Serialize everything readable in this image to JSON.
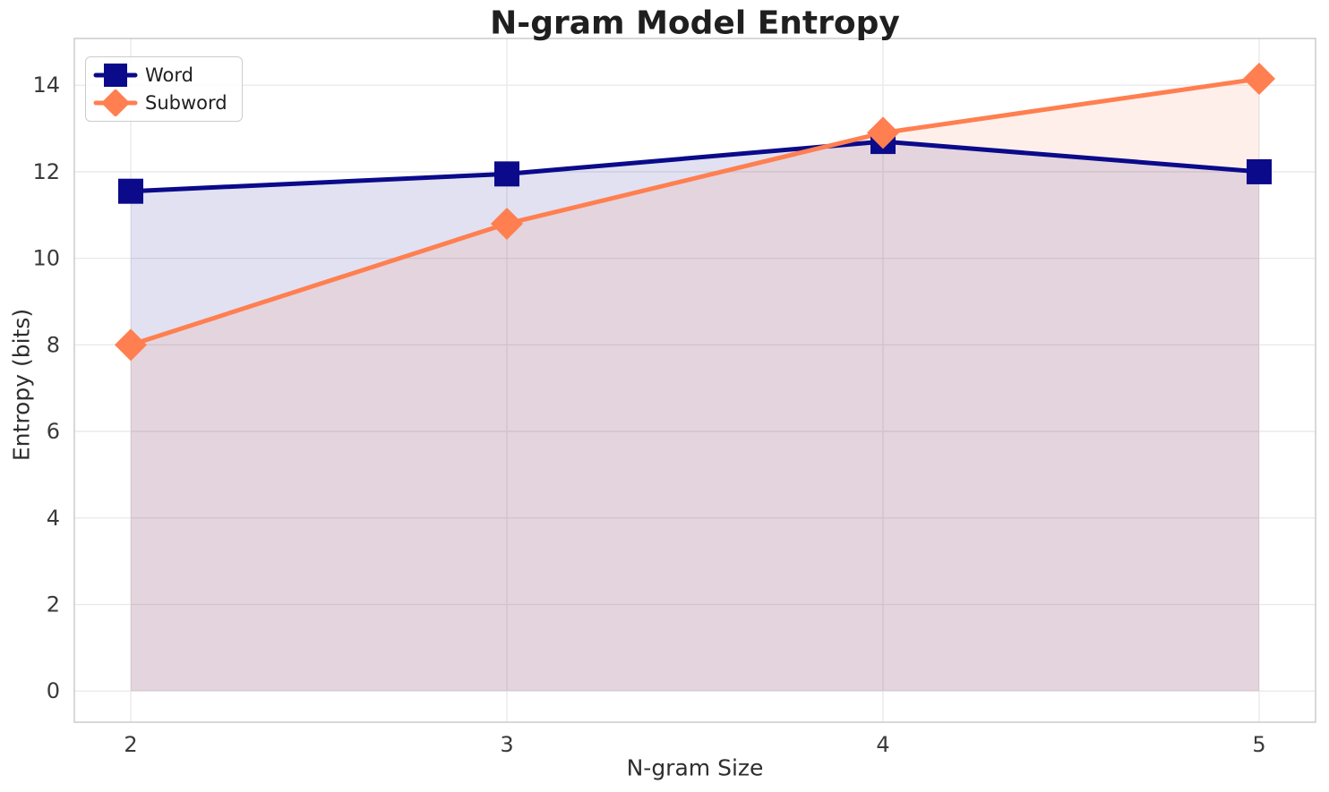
{
  "chart_data": {
    "type": "line",
    "title": "N-gram Model Entropy",
    "xlabel": "N-gram Size",
    "ylabel": "Entropy (bits)",
    "x": [
      2,
      3,
      4,
      5
    ],
    "series": [
      {
        "name": "Word",
        "values": [
          11.55,
          11.95,
          12.7,
          12.0
        ],
        "color": "#0A0A8B",
        "marker": "square"
      },
      {
        "name": "Subword",
        "values": [
          8.0,
          10.8,
          12.9,
          14.15
        ],
        "color": "#FF7F50",
        "marker": "diamond"
      }
    ],
    "xticks": [
      "2",
      "3",
      "4",
      "5"
    ],
    "xtick_values": [
      2,
      3,
      4,
      5
    ],
    "yticks": [
      "0",
      "2",
      "4",
      "6",
      "8",
      "10",
      "12",
      "14"
    ],
    "ytick_values": [
      0,
      2,
      4,
      6,
      8,
      10,
      12,
      14
    ],
    "xlim": [
      1.85,
      5.15
    ],
    "ylim": [
      -0.72,
      15.08
    ],
    "grid": true,
    "legend_position": "upper left",
    "fill_to_zero": true,
    "fill_opacity": 0.12,
    "line_width": 5,
    "grid_color": "#e8e8e8",
    "spine_color": "#cccccc",
    "tick_color": "#3a3a3a"
  }
}
